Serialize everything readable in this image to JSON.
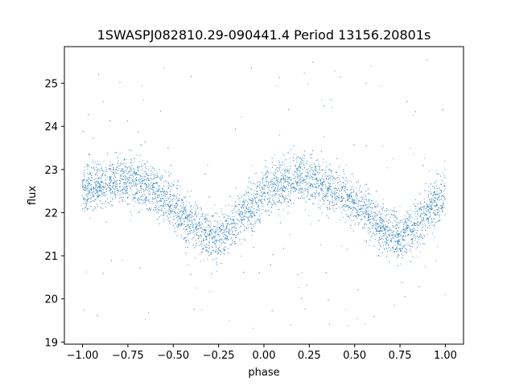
{
  "chart_data": {
    "type": "scatter",
    "title": "1SWASPJ082810.29-090441.4 Period 13156.20801s",
    "xlabel": "phase",
    "ylabel": "flux",
    "xlim": [
      -1.1,
      1.1
    ],
    "ylim": [
      18.95,
      25.85
    ],
    "xticks": [
      -1.0,
      -0.75,
      -0.5,
      -0.25,
      0.0,
      0.25,
      0.5,
      0.75,
      1.0
    ],
    "xtick_labels": [
      "−1.00",
      "−0.75",
      "−0.50",
      "−0.25",
      "0.00",
      "0.25",
      "0.50",
      "0.75",
      "1.00"
    ],
    "yticks": [
      19,
      20,
      21,
      22,
      23,
      24,
      25
    ],
    "ytick_labels": [
      "19",
      "20",
      "21",
      "22",
      "23",
      "24",
      "25"
    ],
    "grid": false,
    "legend": "none",
    "marker_color": "#1f77b4",
    "series": [
      {
        "phase": [
          -1.0,
          -0.9,
          -0.8,
          -0.75,
          -0.7,
          -0.6,
          -0.5,
          -0.4,
          -0.3,
          -0.25,
          -0.2,
          -0.1,
          0.0,
          0.1,
          0.2,
          0.25,
          0.3,
          0.4,
          0.5,
          0.6,
          0.7,
          0.75,
          0.8,
          0.9,
          1.0
        ],
        "flux_center": [
          22.5,
          22.65,
          22.75,
          22.78,
          22.72,
          22.5,
          22.15,
          21.75,
          21.45,
          21.4,
          21.55,
          22.05,
          22.4,
          22.65,
          22.78,
          22.8,
          22.75,
          22.5,
          22.2,
          21.85,
          21.5,
          21.4,
          21.55,
          22.0,
          22.45
        ],
        "flux_spread": 0.55,
        "outlier_range": [
          19.3,
          25.55
        ]
      }
    ]
  }
}
